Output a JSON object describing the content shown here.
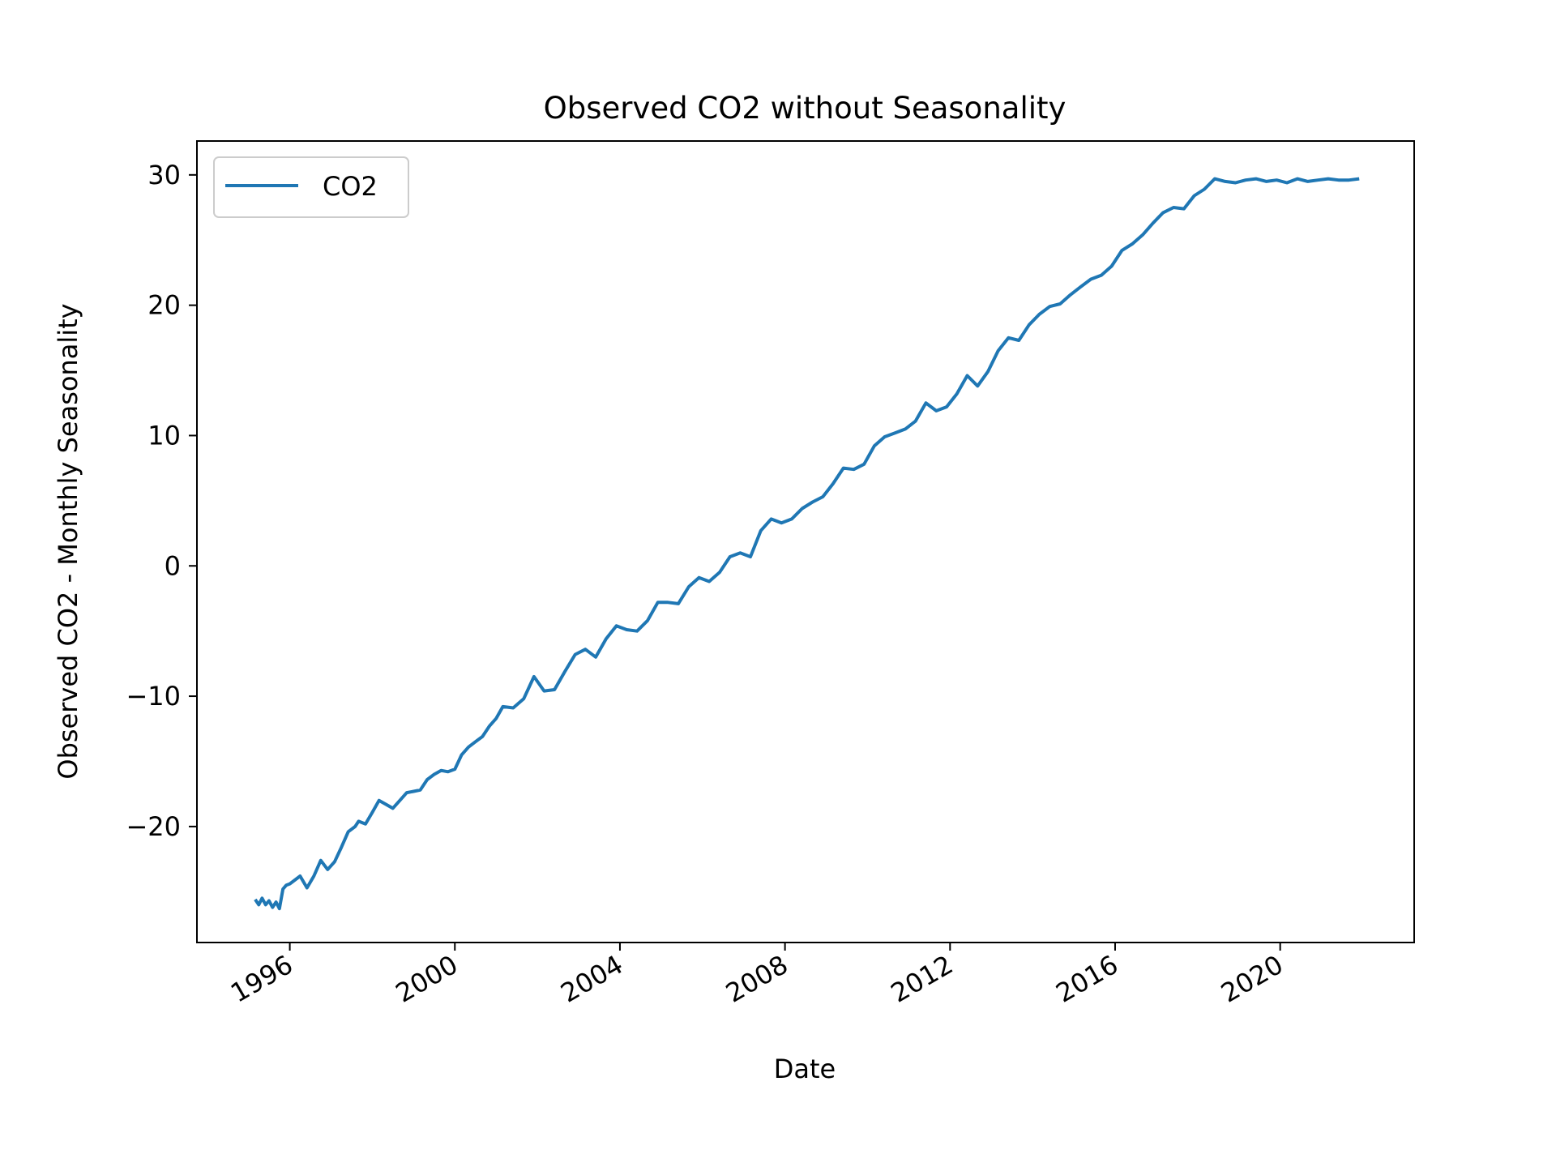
{
  "chart_data": {
    "type": "line",
    "title": "Observed CO2 without Seasonality",
    "xlabel": "Date",
    "ylabel": "Observed CO2 - Monthly Seasonality",
    "x_type": "date",
    "xlim": [
      "1993-10-01",
      "2023-04-01"
    ],
    "ylim": [
      -28.9,
      32.6
    ],
    "x_ticks": [
      "1996-01-01",
      "2000-01-01",
      "2004-01-01",
      "2008-01-01",
      "2012-01-01",
      "2016-01-01",
      "2020-01-01"
    ],
    "x_tick_labels": [
      "1996",
      "2000",
      "2004",
      "2008",
      "2012",
      "2016",
      "2020"
    ],
    "y_ticks": [
      -20,
      -10,
      0,
      10,
      20,
      30
    ],
    "y_tick_labels": [
      "−20",
      "−10",
      "0",
      "10",
      "20",
      "30"
    ],
    "grid": false,
    "legend": {
      "position": "upper-left",
      "entries": [
        "CO2"
      ]
    },
    "line_color": "#1f77b4",
    "series": [
      {
        "name": "CO2",
        "x": [
          "1995-03-01",
          "1995-04-01",
          "1995-05-01",
          "1995-06-01",
          "1995-07-01",
          "1995-08-01",
          "1995-09-01",
          "1995-10-01",
          "1995-11-01",
          "1995-12-01",
          "1996-01-01",
          "1996-02-01",
          "1996-04-01",
          "1996-06-01",
          "1996-08-01",
          "1996-10-01",
          "1996-12-01",
          "1997-02-01",
          "1997-04-01",
          "1997-06-01",
          "1997-08-01",
          "1997-09-01",
          "1997-11-01",
          "1998-01-01",
          "1998-03-01",
          "1998-05-01",
          "1998-07-01",
          "1998-09-01",
          "1998-11-01",
          "1999-01-01",
          "1999-03-01",
          "1999-05-01",
          "1999-07-01",
          "1999-09-01",
          "1999-11-01",
          "2000-01-01",
          "2000-03-01",
          "2000-05-01",
          "2000-07-01",
          "2000-09-01",
          "2000-11-01",
          "2001-01-01",
          "2001-03-01",
          "2001-06-01",
          "2001-09-01",
          "2001-12-01",
          "2002-03-01",
          "2002-06-01",
          "2002-09-01",
          "2002-12-01",
          "2003-03-01",
          "2003-06-01",
          "2003-09-01",
          "2003-12-01",
          "2004-03-01",
          "2004-06-01",
          "2004-09-01",
          "2004-12-01",
          "2005-03-01",
          "2005-06-01",
          "2005-09-01",
          "2005-12-01",
          "2006-03-01",
          "2006-06-01",
          "2006-09-01",
          "2006-12-01",
          "2007-03-01",
          "2007-06-01",
          "2007-09-01",
          "2007-12-01",
          "2008-03-01",
          "2008-06-01",
          "2008-09-01",
          "2008-12-01",
          "2009-03-01",
          "2009-06-01",
          "2009-09-01",
          "2009-12-01",
          "2010-03-01",
          "2010-06-01",
          "2010-09-01",
          "2010-12-01",
          "2011-03-01",
          "2011-06-01",
          "2011-09-01",
          "2011-12-01",
          "2012-03-01",
          "2012-06-01",
          "2012-09-01",
          "2012-12-01",
          "2013-03-01",
          "2013-06-01",
          "2013-09-01",
          "2013-12-01",
          "2014-03-01",
          "2014-06-01",
          "2014-09-01",
          "2014-12-01",
          "2015-03-01",
          "2015-06-01",
          "2015-09-01",
          "2015-12-01",
          "2016-03-01",
          "2016-06-01",
          "2016-09-01",
          "2016-12-01",
          "2017-03-01",
          "2017-06-01",
          "2017-09-01",
          "2017-12-01",
          "2018-03-01",
          "2018-06-01",
          "2018-09-01",
          "2018-12-01",
          "2019-03-01",
          "2019-06-01",
          "2019-09-01",
          "2019-12-01",
          "2020-03-01",
          "2020-06-01",
          "2020-09-01",
          "2020-12-01",
          "2021-03-01",
          "2021-06-01",
          "2021-09-01",
          "2021-12-01"
        ],
        "y": [
          -25.6,
          -26.0,
          -25.5,
          -26.0,
          -25.7,
          -26.2,
          -25.8,
          -26.3,
          -24.8,
          -24.5,
          -24.4,
          -24.2,
          -23.8,
          -24.7,
          -23.8,
          -22.6,
          -23.3,
          -22.7,
          -21.6,
          -20.4,
          -20.0,
          -19.6,
          -19.8,
          -18.9,
          -18.0,
          -18.3,
          -18.6,
          -18.0,
          -17.4,
          -17.3,
          -17.2,
          -16.4,
          -16.0,
          -15.7,
          -15.8,
          -15.6,
          -14.5,
          -13.9,
          -13.5,
          -13.1,
          -12.3,
          -11.7,
          -10.8,
          -10.9,
          -10.2,
          -8.5,
          -9.6,
          -9.5,
          -8.1,
          -6.8,
          -6.4,
          -7.0,
          -5.6,
          -4.6,
          -4.9,
          -5.0,
          -4.2,
          -2.8,
          -2.8,
          -2.9,
          -1.6,
          -0.9,
          -1.2,
          -0.5,
          0.7,
          1.0,
          0.7,
          2.7,
          3.6,
          3.3,
          3.6,
          4.4,
          4.9,
          5.3,
          6.3,
          7.5,
          7.4,
          7.8,
          9.2,
          9.9,
          10.2,
          10.5,
          11.1,
          12.5,
          11.9,
          12.2,
          13.2,
          14.6,
          13.8,
          14.9,
          16.5,
          17.5,
          17.3,
          18.5,
          19.3,
          19.9,
          20.1,
          20.8,
          21.4,
          22.0,
          22.3,
          23.0,
          24.2,
          24.7,
          25.4,
          26.3,
          27.1,
          27.5,
          27.4,
          28.4,
          28.9,
          29.7,
          29.5,
          29.4,
          29.6,
          29.7,
          29.5,
          29.6,
          29.4,
          29.7,
          29.5,
          29.6,
          29.7,
          29.6,
          29.6,
          29.7
        ]
      }
    ]
  }
}
